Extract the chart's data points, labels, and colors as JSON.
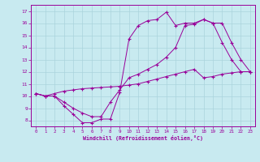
{
  "xlabel": "Windchill (Refroidissement éolien,°C)",
  "background_color": "#c8eaf0",
  "line_color": "#990099",
  "grid_color": "#aad4dc",
  "xlim": [
    -0.5,
    23.5
  ],
  "ylim": [
    7.5,
    17.5
  ],
  "xticks": [
    0,
    1,
    2,
    3,
    4,
    5,
    6,
    7,
    8,
    9,
    10,
    11,
    12,
    13,
    14,
    15,
    16,
    17,
    18,
    19,
    20,
    21,
    22,
    23
  ],
  "yticks": [
    8,
    9,
    10,
    11,
    12,
    13,
    14,
    15,
    16,
    17
  ],
  "hours": [
    0,
    1,
    2,
    3,
    4,
    5,
    6,
    7,
    8,
    9,
    10,
    11,
    12,
    13,
    14,
    15,
    16,
    17,
    18,
    19,
    20,
    21,
    22,
    23
  ],
  "line1": [
    10.2,
    10.0,
    10.0,
    9.2,
    8.5,
    7.8,
    7.8,
    8.1,
    8.1,
    10.3,
    14.7,
    15.8,
    16.2,
    16.3,
    16.9,
    15.8,
    16.0,
    16.0,
    16.3,
    16.0,
    14.4,
    13.0,
    12.0,
    12.0
  ],
  "line2": [
    10.2,
    10.0,
    10.0,
    9.5,
    9.0,
    8.6,
    8.3,
    8.3,
    9.5,
    10.5,
    11.5,
    11.8,
    12.2,
    12.6,
    13.2,
    14.0,
    15.8,
    15.9,
    16.3,
    16.0,
    16.0,
    14.4,
    13.0,
    12.0
  ],
  "line3": [
    10.2,
    10.0,
    10.2,
    10.4,
    10.5,
    10.6,
    10.65,
    10.7,
    10.75,
    10.8,
    10.9,
    11.0,
    11.2,
    11.4,
    11.6,
    11.8,
    12.0,
    12.2,
    11.5,
    11.6,
    11.8,
    11.9,
    12.0,
    12.0
  ]
}
